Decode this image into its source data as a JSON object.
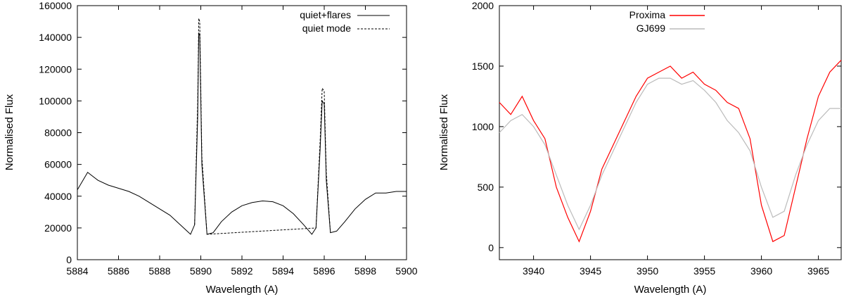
{
  "chart_data": [
    {
      "type": "line",
      "title": "",
      "xlabel": "Wavelength (A)",
      "ylabel": "Normalised Flux",
      "xlim": [
        5884,
        5900
      ],
      "ylim": [
        0,
        160000
      ],
      "xticks": [
        5884,
        5886,
        5888,
        5890,
        5892,
        5894,
        5896,
        5898,
        5900
      ],
      "yticks": [
        0,
        20000,
        40000,
        60000,
        80000,
        100000,
        120000,
        140000,
        160000
      ],
      "grid": false,
      "legend_position": "top-right",
      "series": [
        {
          "name": "quiet+flares",
          "style": "solid",
          "color": "#000000",
          "x": [
            5884.0,
            5884.5,
            5885.0,
            5885.5,
            5886.0,
            5886.5,
            5887.0,
            5887.5,
            5888.0,
            5888.5,
            5889.0,
            5889.5,
            5889.7,
            5889.85,
            5889.9,
            5889.95,
            5890.05,
            5890.3,
            5890.6,
            5891.0,
            5891.5,
            5892.0,
            5892.5,
            5893.0,
            5893.5,
            5894.0,
            5894.5,
            5895.0,
            5895.4,
            5895.6,
            5895.8,
            5895.9,
            5896.0,
            5896.1,
            5896.3,
            5896.6,
            5897.0,
            5897.5,
            5898.0,
            5898.5,
            5899.0,
            5899.5,
            5900.0
          ],
          "y": [
            44000,
            55000,
            50000,
            47000,
            45000,
            43000,
            40000,
            36000,
            32000,
            28000,
            22000,
            16000,
            22000,
            90000,
            143000,
            141000,
            60000,
            16000,
            17000,
            24000,
            30000,
            34000,
            36000,
            37000,
            36500,
            34000,
            29000,
            22000,
            16000,
            20000,
            70000,
            100000,
            98000,
            50000,
            17000,
            18000,
            24000,
            32000,
            38000,
            42000,
            42000,
            43000,
            43000
          ]
        },
        {
          "name": "quiet mode",
          "style": "dashed",
          "color": "#000000",
          "x": [
            5889.7,
            5889.85,
            5889.9,
            5889.95,
            5890.05,
            5890.3,
            5895.6,
            5895.8,
            5895.9,
            5896.0,
            5896.1,
            5896.3
          ],
          "y": [
            22000,
            100000,
            152000,
            150000,
            65000,
            16000,
            20000,
            75000,
            108000,
            106000,
            55000,
            17000
          ]
        }
      ]
    },
    {
      "type": "line",
      "title": "",
      "xlabel": "Wavelength (A)",
      "ylabel": "Normalised Flux",
      "xlim": [
        3937,
        3967
      ],
      "ylim": [
        -100,
        2000
      ],
      "xticks": [
        3940,
        3945,
        3950,
        3955,
        3960,
        3965
      ],
      "yticks": [
        0,
        500,
        1000,
        1500,
        2000
      ],
      "grid": false,
      "legend_position": "top-left",
      "series": [
        {
          "name": "Proxima",
          "color": "#ff0000",
          "x": [
            3937,
            3938,
            3939,
            3940,
            3941,
            3942,
            3943,
            3944,
            3945,
            3946,
            3947,
            3948,
            3949,
            3950,
            3951,
            3952,
            3953,
            3954,
            3955,
            3956,
            3957,
            3958,
            3959,
            3960,
            3961,
            3962,
            3963,
            3964,
            3965,
            3966,
            3967
          ],
          "y": [
            1200,
            1100,
            1250,
            1050,
            900,
            500,
            250,
            50,
            300,
            650,
            850,
            1050,
            1250,
            1400,
            1450,
            1500,
            1400,
            1450,
            1350,
            1300,
            1200,
            1150,
            900,
            350,
            50,
            100,
            500,
            900,
            1250,
            1450,
            1550
          ]
        },
        {
          "name": "GJ699",
          "color": "#bbbbbb",
          "x": [
            3937,
            3938,
            3939,
            3940,
            3941,
            3942,
            3943,
            3944,
            3945,
            3946,
            3947,
            3948,
            3949,
            3950,
            3951,
            3952,
            3953,
            3954,
            3955,
            3956,
            3957,
            3958,
            3959,
            3960,
            3961,
            3962,
            3963,
            3964,
            3965,
            3966,
            3967
          ],
          "y": [
            950,
            1050,
            1100,
            1000,
            850,
            600,
            350,
            150,
            350,
            600,
            800,
            1000,
            1200,
            1350,
            1400,
            1400,
            1350,
            1380,
            1300,
            1200,
            1050,
            950,
            800,
            500,
            250,
            300,
            600,
            850,
            1050,
            1150,
            1150
          ]
        }
      ]
    }
  ]
}
